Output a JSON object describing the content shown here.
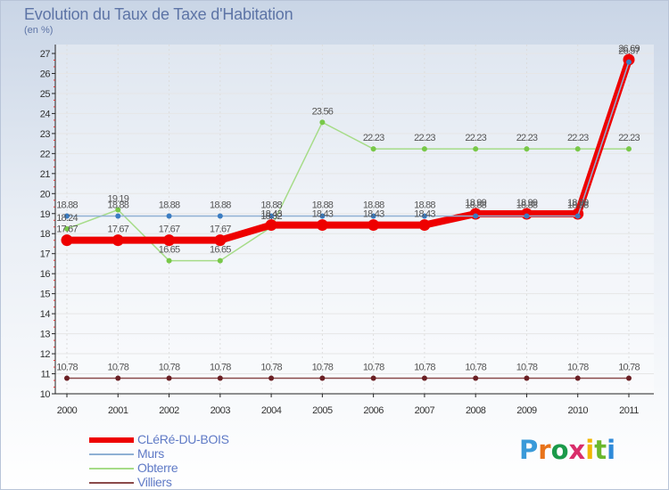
{
  "header": {
    "title": "Evolution du Taux de Taxe d'Habitation",
    "unit": "(en %)"
  },
  "brand": {
    "letters": [
      "P",
      "r",
      "o",
      "x",
      "i",
      "t",
      "i"
    ],
    "colors": [
      "#3a9ad9",
      "#e8731a",
      "#1b9a4a",
      "#d92e6b",
      "#f2b600",
      "#6bb82e",
      "#2e8ad9"
    ]
  },
  "chart_data": {
    "type": "line",
    "title": "Evolution du Taux de Taxe d'Habitation",
    "ylabel": "(en %)",
    "xlabel": "",
    "ylim": [
      10,
      27
    ],
    "yticks": [
      "10",
      "11",
      "12",
      "13",
      "14",
      "15",
      "16",
      "17",
      "18",
      "19",
      "20",
      "21",
      "22",
      "23",
      "24",
      "25",
      "26",
      "27"
    ],
    "categories": [
      "2000",
      "2001",
      "2002",
      "2003",
      "2004",
      "2005",
      "2006",
      "2007",
      "2008",
      "2009",
      "2010",
      "2011"
    ],
    "series": [
      {
        "name": "CLéRé-DU-BOIS",
        "color": "#ee0000",
        "marker": "#ee0000",
        "values": [
          17.67,
          17.67,
          17.67,
          17.67,
          18.43,
          18.43,
          18.43,
          18.43,
          18.99,
          18.99,
          18.99,
          26.69
        ],
        "labels": [
          "17.67",
          "17.67",
          "17.67",
          "17.67",
          "18.43",
          "18.43",
          "18.43",
          "18.43",
          "18.99",
          "18.99",
          "18.99",
          "26.69"
        ]
      },
      {
        "name": "Murs",
        "color": "#8fb0d4",
        "marker": "#3a7cc2",
        "values": [
          18.88,
          18.88,
          18.88,
          18.88,
          18.88,
          18.88,
          18.88,
          18.88,
          18.88,
          18.88,
          18.88,
          26.57
        ],
        "labels": [
          "18.88",
          "18.88",
          "18.88",
          "18.88",
          "18.88",
          "18.88",
          "18.88",
          "18.88",
          "18.88",
          "18.88",
          "18.88",
          "26.57"
        ]
      },
      {
        "name": "Obterre",
        "color": "#a6dc88",
        "marker": "#78c848",
        "values": [
          18.24,
          19.19,
          16.65,
          16.65,
          18.32,
          23.56,
          22.23,
          22.23,
          22.23,
          22.23,
          22.23,
          22.23
        ],
        "labels": [
          "18.24",
          "19.19",
          "16.65",
          "16.65",
          "18.32",
          "23.56",
          "22.23",
          "22.23",
          "22.23",
          "22.23",
          "22.23",
          "22.23"
        ]
      },
      {
        "name": "Villiers",
        "color": "#8a4a4a",
        "marker": "#6a1f24",
        "values": [
          10.78,
          10.78,
          10.78,
          10.78,
          10.78,
          10.78,
          10.78,
          10.78,
          10.78,
          10.78,
          10.78,
          10.78
        ],
        "labels": [
          "10.78",
          "10.78",
          "10.78",
          "10.78",
          "10.78",
          "10.78",
          "10.78",
          "10.78",
          "10.78",
          "10.78",
          "10.78",
          "10.78"
        ]
      }
    ],
    "legend": "bottom-left"
  }
}
